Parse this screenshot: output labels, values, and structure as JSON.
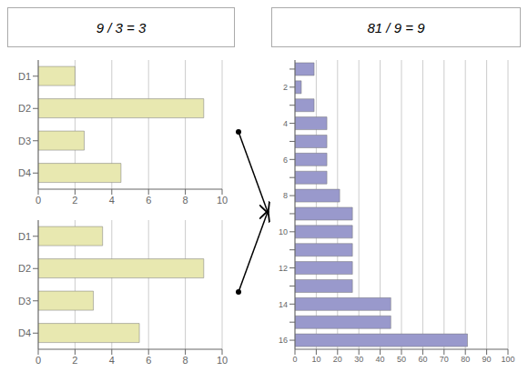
{
  "chart_data": [
    {
      "type": "bar",
      "orientation": "horizontal",
      "annotations": [
        "9 / 3 = 3"
      ],
      "categories": [
        "D1",
        "D2",
        "D3",
        "D4"
      ],
      "values": [
        2.0,
        9.0,
        2.5,
        4.5
      ],
      "color": "#e8e8b0",
      "xlim": [
        0,
        10
      ],
      "xticks": [
        0,
        2,
        4,
        6,
        8,
        10
      ],
      "grid": true
    },
    {
      "type": "bar",
      "orientation": "horizontal",
      "categories": [
        "D1",
        "D2",
        "D3",
        "D4"
      ],
      "values": [
        3.5,
        9.0,
        3.0,
        5.5
      ],
      "color": "#e8e8b0",
      "xlim": [
        0,
        10
      ],
      "xticks": [
        0,
        2,
        4,
        6,
        8,
        10
      ],
      "grid": true
    },
    {
      "type": "bar",
      "orientation": "horizontal",
      "annotations": [
        "81 / 9 = 9"
      ],
      "categories": [
        null,
        "2",
        null,
        "4",
        null,
        "6",
        null,
        "8",
        null,
        "10",
        null,
        "12",
        null,
        "14",
        null,
        "16"
      ],
      "values": [
        9,
        3,
        9,
        15,
        15,
        15,
        15,
        21,
        27,
        27,
        27,
        27,
        27,
        45,
        45,
        81
      ],
      "color": "#9999cc",
      "xlim": [
        0,
        100
      ],
      "xticks": [
        0,
        10,
        20,
        30,
        40,
        50,
        60,
        70,
        80,
        90,
        100
      ],
      "grid": true
    }
  ]
}
